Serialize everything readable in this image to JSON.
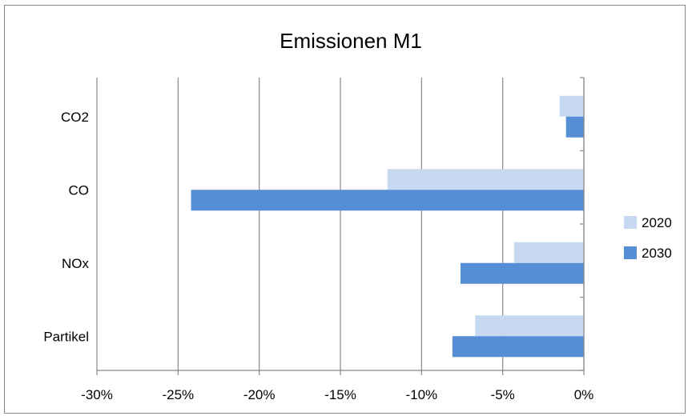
{
  "chart_data": {
    "type": "bar",
    "orientation": "horizontal",
    "title": "Emissionen M1",
    "xlabel": "",
    "ylabel": "",
    "categories": [
      "CO2",
      "CO",
      "NOx",
      "Partikel"
    ],
    "series": [
      {
        "name": "2020",
        "color": "#c6d9f1",
        "values": [
          -1.5,
          -12.1,
          -4.3,
          -6.7
        ]
      },
      {
        "name": "2030",
        "color": "#558ed5",
        "values": [
          -1.1,
          -24.2,
          -7.6,
          -8.1
        ]
      }
    ],
    "xlim": [
      -30,
      0
    ],
    "x_ticks": [
      -30,
      -25,
      -20,
      -15,
      -10,
      -5,
      0
    ],
    "x_tick_labels": [
      "-30%",
      "-25%",
      "-20%",
      "-15%",
      "-10%",
      "-5%",
      "0%"
    ],
    "grid": "vertical",
    "legend_position": "right",
    "colors": {
      "gridline": "#878787",
      "axis": "#878787"
    }
  }
}
